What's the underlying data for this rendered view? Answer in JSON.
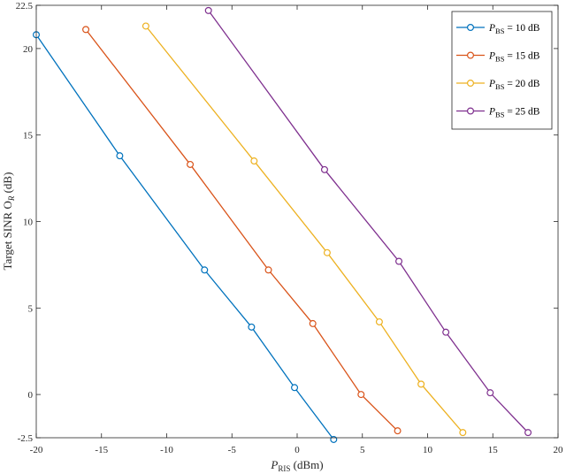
{
  "chart_data": {
    "type": "line",
    "title": "",
    "xlabel": "P_RIS (dBm)",
    "xlabel_main": "P",
    "xlabel_sub": "RIS",
    "xlabel_rest": " (dBm)",
    "ylabel": "Target SINR Ο_R (dB)",
    "ylabel_main": "Target SINR Ο",
    "ylabel_sub": "R",
    "ylabel_rest": " (dB)",
    "xlim": [
      -20,
      20
    ],
    "ylim": [
      -2.5,
      22.5
    ],
    "xticks": [
      -20,
      -15,
      -10,
      -5,
      0,
      5,
      10,
      15,
      20
    ],
    "xtick_labels": [
      "-20",
      "-15",
      "-10",
      "-5",
      "0",
      "5",
      "10",
      "15",
      "20"
    ],
    "yticks": [
      -2.5,
      0,
      5,
      10,
      15,
      20,
      22.5
    ],
    "ytick_labels": [
      "-2.5",
      "0",
      "5",
      "10",
      "15",
      "20",
      "22.5"
    ],
    "grid": false,
    "legend_position": "top-right",
    "series": [
      {
        "name": "P_BS = 10 dB",
        "legend_main": "P",
        "legend_sub": "BS",
        "legend_rest": " = 10 dB",
        "color": "#0072BD",
        "x": [
          -20,
          -13.6,
          -7.1,
          -3.5,
          -0.2,
          2.8
        ],
        "y": [
          20.8,
          13.8,
          7.2,
          3.9,
          0.4,
          -2.6
        ]
      },
      {
        "name": "P_BS = 15 dB",
        "legend_main": "P",
        "legend_sub": "BS",
        "legend_rest": " = 15 dB",
        "color": "#D95319",
        "x": [
          -16.2,
          -8.2,
          -2.2,
          1.2,
          4.9,
          7.7
        ],
        "y": [
          21.1,
          13.3,
          7.2,
          4.1,
          0.0,
          -2.1
        ]
      },
      {
        "name": "P_BS = 20 dB",
        "legend_main": "P",
        "legend_sub": "BS",
        "legend_rest": " = 20 dB",
        "color": "#EDB120",
        "x": [
          -11.6,
          -3.3,
          2.3,
          6.3,
          9.5,
          12.7
        ],
        "y": [
          21.3,
          13.5,
          8.2,
          4.2,
          0.6,
          -2.2
        ]
      },
      {
        "name": "P_BS = 25 dB",
        "legend_main": "P",
        "legend_sub": "BS",
        "legend_rest": " = 25 dB",
        "color": "#7E2F8E",
        "x": [
          -6.8,
          2.1,
          7.8,
          11.4,
          14.8,
          17.7
        ],
        "y": [
          22.2,
          13.0,
          7.7,
          3.6,
          0.1,
          -2.2
        ]
      }
    ]
  }
}
